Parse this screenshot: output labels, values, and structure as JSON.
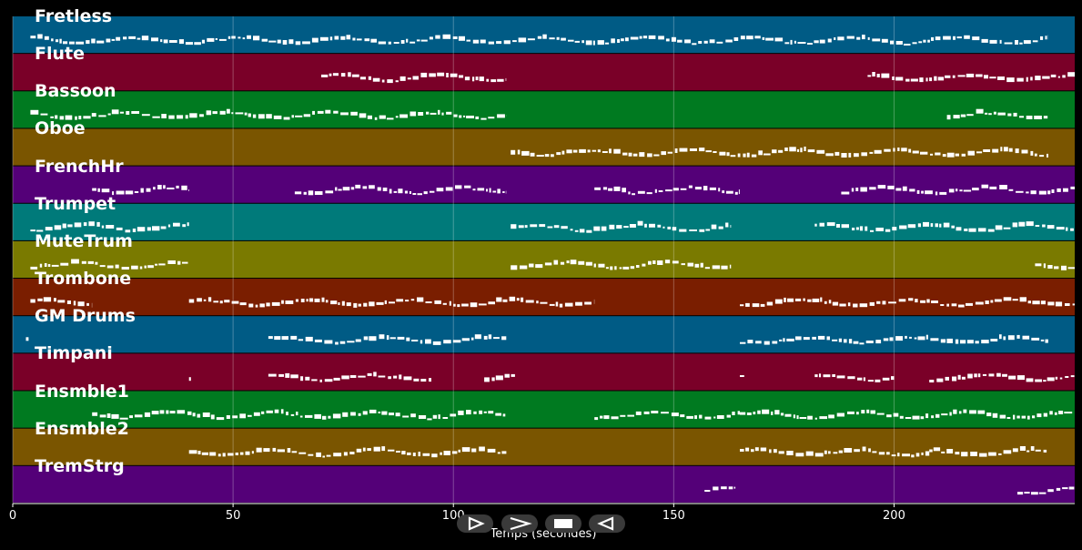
{
  "chart_data": {
    "type": "piano-roll",
    "xlabel": "Temps (secondes)",
    "xlim": [
      0,
      241
    ],
    "xticks": [
      0,
      50,
      100,
      150,
      200
    ],
    "grid": true,
    "tracks": [
      {
        "name": "Fretless",
        "color": "#005b85",
        "segments": [
          [
            4,
            235
          ]
        ]
      },
      {
        "name": "Flute",
        "color": "#7a0028",
        "segments": [
          [
            70,
            112
          ],
          [
            194,
            241
          ]
        ]
      },
      {
        "name": "Bassoon",
        "color": "#007a20",
        "segments": [
          [
            4,
            112
          ],
          [
            212,
            235
          ]
        ]
      },
      {
        "name": "Oboe",
        "color": "#7a5500",
        "segments": [
          [
            113,
            235
          ]
        ]
      },
      {
        "name": "FrenchHr",
        "color": "#540078",
        "segments": [
          [
            18,
            40
          ],
          [
            64,
            112
          ],
          [
            132,
            165
          ],
          [
            188,
            241
          ]
        ]
      },
      {
        "name": "Trumpet",
        "color": "#007a7a",
        "segments": [
          [
            4,
            40
          ],
          [
            113,
            163
          ],
          [
            182,
            241
          ]
        ]
      },
      {
        "name": "MuteTrum",
        "color": "#7a7a00",
        "segments": [
          [
            4,
            40
          ],
          [
            113,
            163
          ],
          [
            232,
            241
          ]
        ]
      },
      {
        "name": "Trombone",
        "color": "#7a1e00",
        "segments": [
          [
            4,
            18
          ],
          [
            40,
            132
          ],
          [
            165,
            241
          ]
        ]
      },
      {
        "name": "GM Drums",
        "color": "#005b85",
        "segments": [
          [
            3,
            4
          ],
          [
            58,
            112
          ],
          [
            165,
            235
          ]
        ]
      },
      {
        "name": "Timpani",
        "color": "#7a0028",
        "segments": [
          [
            40,
            41
          ],
          [
            58,
            95
          ],
          [
            107,
            114
          ],
          [
            165,
            166
          ],
          [
            182,
            200
          ],
          [
            208,
            241
          ]
        ]
      },
      {
        "name": "Ensmble1",
        "color": "#007a20",
        "segments": [
          [
            18,
            112
          ],
          [
            132,
            165
          ],
          [
            165,
            241
          ]
        ]
      },
      {
        "name": "Ensmble2",
        "color": "#7a5500",
        "segments": [
          [
            40,
            112
          ],
          [
            165,
            208
          ],
          [
            208,
            235
          ]
        ]
      },
      {
        "name": "TremStrg",
        "color": "#540078",
        "segments": [
          [
            157,
            164
          ],
          [
            228,
            241
          ]
        ]
      }
    ]
  },
  "controls": {
    "play_icon": "play-outline-icon",
    "forward_icon": "chevron-right-icon",
    "stop_icon": "stop-icon",
    "back_icon": "rewind-icon"
  }
}
